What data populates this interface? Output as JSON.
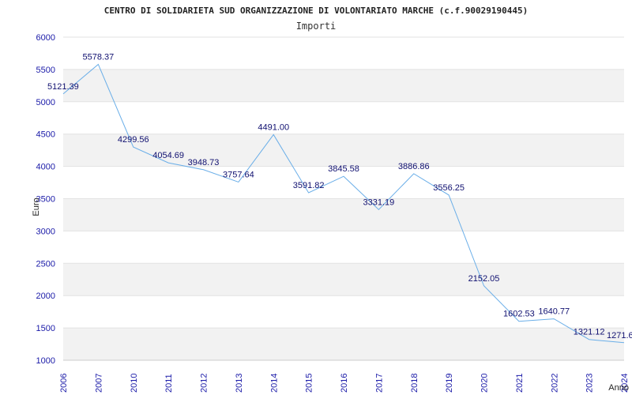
{
  "chart_data": {
    "type": "line",
    "title": "CENTRO DI SOLIDARIETA SUD ORGANIZZAZIONE DI VOLONTARIATO MARCHE (c.f.90029190445)",
    "subtitle": "Importi",
    "xlabel": "Anno",
    "ylabel": "Euro",
    "ylim": [
      1000,
      6000
    ],
    "yticks": [
      1000,
      1500,
      2000,
      2500,
      3000,
      3500,
      4000,
      4500,
      5000,
      5500,
      6000
    ],
    "grid": "horizontal bands",
    "series": [
      {
        "x": [
          "2006",
          "2007",
          "2010",
          "2011",
          "2012",
          "2013",
          "2014",
          "2015",
          "2016",
          "2017",
          "2018",
          "2019",
          "2020",
          "2021",
          "2022",
          "2023",
          "2024"
        ],
        "values": [
          5121.39,
          5578.37,
          4299.56,
          4054.69,
          3948.73,
          3757.64,
          4491.0,
          3591.82,
          3845.58,
          3331.19,
          3886.86,
          3556.25,
          2152.05,
          1602.53,
          1640.77,
          1321.12,
          1271.6
        ],
        "labels": [
          "5121.39",
          "5578.37",
          "4299.56",
          "4054.69",
          "3948.73",
          "3757.64",
          "4491.00",
          "3591.82",
          "3845.58",
          "3331.19",
          "3886.86",
          "3556.25",
          "2152.05",
          "1602.53",
          "1640.77",
          "1321.12",
          "1271.6"
        ]
      }
    ],
    "colors": {
      "line": "#6aaee8",
      "band": "#f2f2f2",
      "tick_text": "#1a1aa8",
      "label_text": "#101070"
    }
  }
}
